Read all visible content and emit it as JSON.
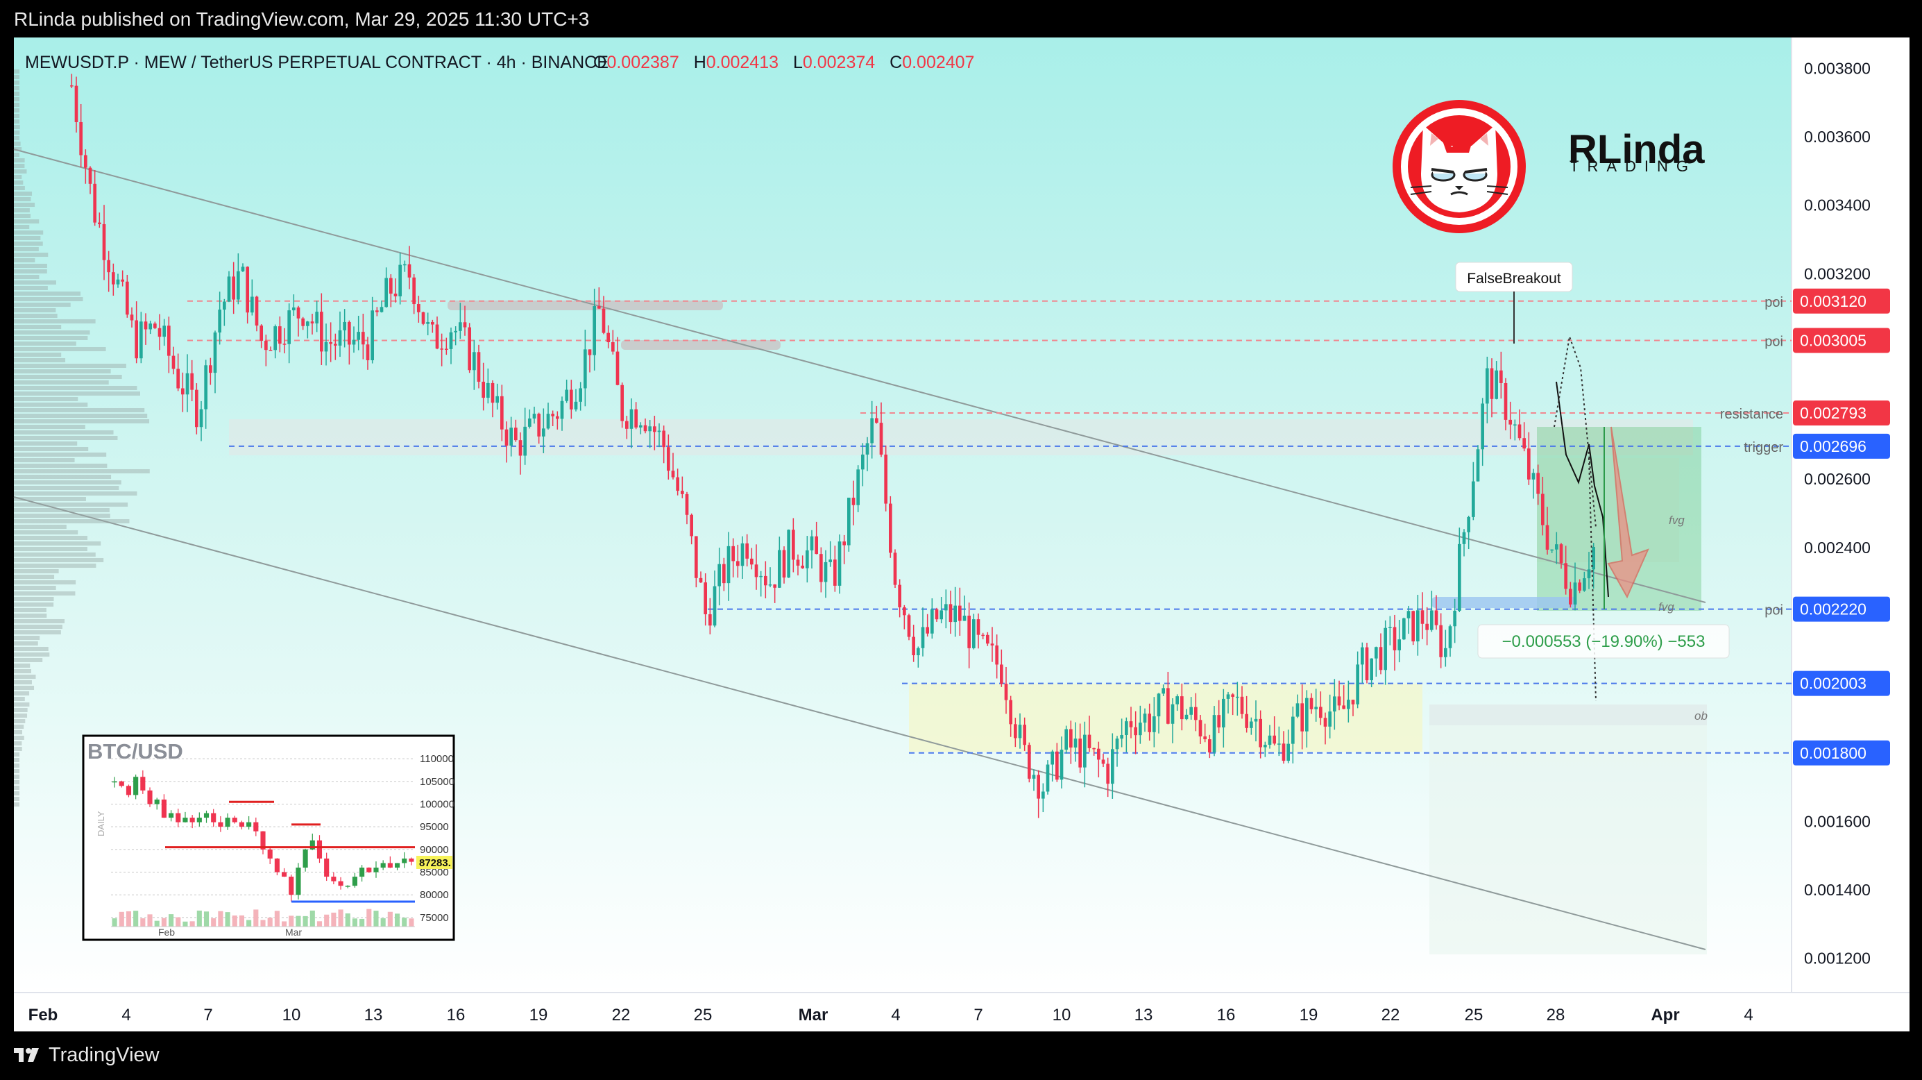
{
  "publisher": "RLinda published on TradingView.com, Mar 29, 2025 11:30 UTC+3",
  "brand": "TradingView",
  "legend": {
    "symbol": "MEWUSDT.P · MEW / TetherUS PERPETUAL CONTRACT · 4h · BINANCE",
    "o_label": "O",
    "o": "0.002387",
    "h_label": "H",
    "h": "0.002413",
    "l_label": "L",
    "l": "0.002374",
    "c_label": "C",
    "c": "0.002407"
  },
  "logo": {
    "text": "RLinda",
    "sub": "TRADING"
  },
  "measure": "−0.000553 (−19.90%) −553",
  "annotation": "FalseBreakout",
  "colors": {
    "up": "#22a99a",
    "down": "#ef3450",
    "bg_top": "#a9efe9",
    "bg_bottom": "#ffffff",
    "red_tag": "#f23645",
    "blue_tag": "#2962ff"
  },
  "chart_data": {
    "type": "candlestick",
    "interval": "4h",
    "y_ticks": [
      "0.003800",
      "0.003600",
      "0.003400",
      "0.003200",
      "0.002600",
      "0.002400",
      "0.001600",
      "0.001400",
      "0.001200"
    ],
    "ylim": [
      0.0011,
      0.00389
    ],
    "x_ticks": [
      "Feb",
      "4",
      "7",
      "10",
      "13",
      "16",
      "19",
      "22",
      "25",
      "Mar",
      "4",
      "7",
      "10",
      "13",
      "16",
      "19",
      "22",
      "25",
      "28",
      "Apr",
      "4"
    ],
    "levels": [
      {
        "label": "poi",
        "value": "0.003120",
        "tag": "red"
      },
      {
        "label": "poi",
        "value": "0.003005",
        "tag": "red"
      },
      {
        "label": "resistance",
        "value": "0.002793",
        "tag": "red"
      },
      {
        "label": "trigger",
        "value": "0.002696",
        "tag": "blue"
      },
      {
        "label": "poi",
        "value": "0.002220",
        "tag": "blue"
      },
      {
        "label": "",
        "value": "0.002003",
        "tag": "blue"
      },
      {
        "label": "",
        "value": "0.001800",
        "tag": "blue"
      }
    ],
    "zone_labels": [
      "fvg",
      "fvg",
      "ob"
    ],
    "approx_closes": [
      0.00375,
      0.0034,
      0.0032,
      0.003,
      0.00305,
      0.0029,
      0.0028,
      0.0031,
      0.0032,
      0.003,
      0.00305,
      0.0031,
      0.003,
      0.003,
      0.003,
      0.00315,
      0.0032,
      0.003,
      0.00305,
      0.00295,
      0.0028,
      0.0027,
      0.00275,
      0.0028,
      0.0029,
      0.0031,
      0.0028,
      0.0028,
      0.0027,
      0.0025,
      0.0022,
      0.00235,
      0.00242,
      0.0023,
      0.0024,
      0.00238,
      0.0023,
      0.00255,
      0.00278,
      0.0023,
      0.0021,
      0.0022,
      0.0022,
      0.0021,
      0.00205,
      0.0018,
      0.0017,
      0.00182,
      0.0018,
      0.00175,
      0.0019,
      0.0019,
      0.00195,
      0.0019,
      0.00185,
      0.00195,
      0.0019,
      0.0018,
      0.0019,
      0.00195,
      0.0019,
      0.00205,
      0.0021,
      0.00215,
      0.0022,
      0.0021,
      0.0025,
      0.0029,
      0.0028,
      0.0026,
      0.0024,
      0.00228,
      0.0024
    ]
  },
  "inset": {
    "title": "BTC/USD",
    "side_label": "DAILY",
    "y_ticks": [
      "110000",
      "105000",
      "100000",
      "95000",
      "90000",
      "85000",
      "80000",
      "75000"
    ],
    "price_tag": "87283.",
    "x_ticks": [
      "Feb",
      "Mar"
    ],
    "closes": [
      105000,
      104000,
      102000,
      106000,
      103000,
      100000,
      101000,
      97000,
      98000,
      96000,
      97000,
      96000,
      97000,
      98000,
      96000,
      95000,
      97000,
      96000,
      95000,
      96000,
      94000,
      90000,
      88000,
      85000,
      84000,
      80000,
      86000,
      90000,
      92000,
      88000,
      84000,
      83000,
      82000,
      82000,
      84000,
      86000,
      85000,
      86000,
      87000,
      86000,
      87000,
      88000,
      87283
    ]
  }
}
